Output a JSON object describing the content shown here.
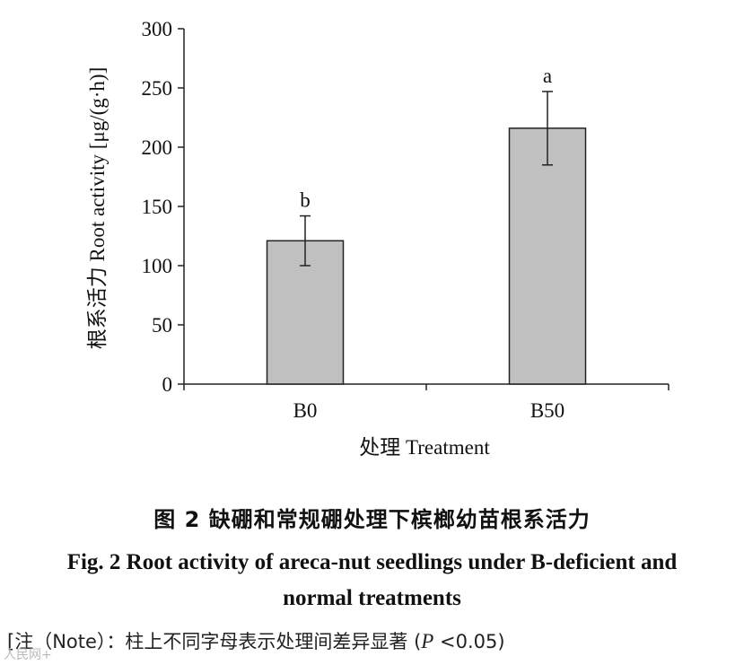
{
  "chart_data": {
    "type": "bar",
    "categories": [
      "B0",
      "B50"
    ],
    "values": [
      121,
      216
    ],
    "errors": [
      21,
      31
    ],
    "significance": [
      "b",
      "a"
    ],
    "ylim": [
      0,
      300
    ],
    "yticks": [
      0,
      50,
      100,
      150,
      200,
      250,
      300
    ],
    "ylabel": "根系活力 Root activity [μg/(g·h)]",
    "xlabel": "处理 Treatment",
    "bar_color": "#c0c0c0"
  },
  "caption": {
    "cn": "图 2   缺硼和常规硼处理下槟榔幼苗根系活力",
    "en": "Fig. 2   Root activity of areca-nut seedlings under B-deficient and normal treatments"
  },
  "note": {
    "prefix": "[注（Note）：柱上不同字母表示处理间差异显著 (",
    "p": "P",
    "suffix": " <0.05)"
  },
  "watermark": "人民网+"
}
